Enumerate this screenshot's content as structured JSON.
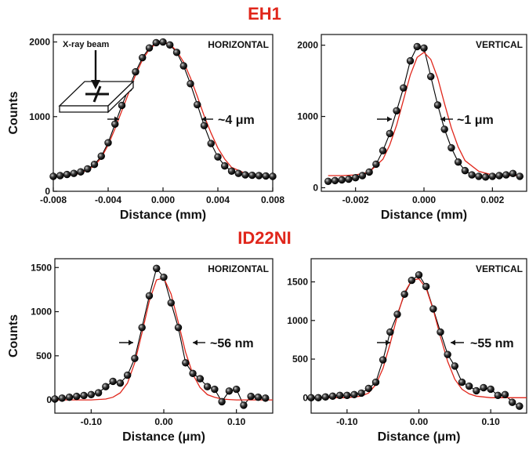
{
  "sections": [
    {
      "title": "EH1"
    },
    {
      "title": "ID22NI"
    }
  ],
  "inset": {
    "label": "X-ray beam"
  },
  "chart_data": [
    {
      "type": "scatter",
      "section": "EH1",
      "orientation": "HORIZONTAL",
      "fwhm_label": "~4 μm",
      "xlabel": "Distance (mm)",
      "ylabel": "Counts",
      "xlim": [
        -0.008,
        0.008
      ],
      "ylim": [
        0,
        2100
      ],
      "xticks": [
        -0.008,
        -0.004,
        0.0,
        0.004,
        0.008
      ],
      "xtick_labels": [
        "-0.008",
        "-0.004",
        "0.000",
        "0.004",
        "0.008"
      ],
      "yticks": [
        0,
        1000,
        2000
      ],
      "ytick_labels": [
        "0",
        "1000",
        "2000"
      ],
      "series": [
        {
          "name": "",
          "style": "markers+line",
          "color": "#000000",
          "x": [
            -0.008,
            -0.0075,
            -0.007,
            -0.0065,
            -0.006,
            -0.0055,
            -0.005,
            -0.0045,
            -0.004,
            -0.0035,
            -0.003,
            -0.0025,
            -0.002,
            -0.0015,
            -0.001,
            -0.0005,
            0.0,
            0.0005,
            0.001,
            0.0015,
            0.002,
            0.0025,
            0.003,
            0.0035,
            0.004,
            0.0045,
            0.005,
            0.0055,
            0.006,
            0.0065,
            0.007,
            0.0075,
            0.008
          ],
          "y": [
            200,
            210,
            225,
            240,
            260,
            300,
            360,
            470,
            650,
            900,
            1150,
            1380,
            1600,
            1790,
            1920,
            1990,
            2000,
            1960,
            1860,
            1680,
            1440,
            1160,
            880,
            640,
            460,
            340,
            270,
            240,
            220,
            215,
            210,
            205,
            200
          ]
        },
        {
          "name": "",
          "style": "line",
          "color": "#e0261b",
          "x": [
            -0.008,
            -0.007,
            -0.006,
            -0.005,
            -0.0045,
            -0.004,
            -0.0035,
            -0.003,
            -0.0025,
            -0.002,
            -0.0015,
            -0.001,
            -0.0005,
            0.0,
            0.0005,
            0.001,
            0.0015,
            0.002,
            0.0025,
            0.003,
            0.0035,
            0.004,
            0.0045,
            0.005,
            0.006,
            0.007,
            0.008
          ],
          "y": [
            200,
            210,
            240,
            340,
            450,
            620,
            840,
            1080,
            1320,
            1560,
            1760,
            1900,
            1980,
            2000,
            1970,
            1880,
            1730,
            1520,
            1270,
            1010,
            780,
            580,
            430,
            320,
            240,
            210,
            200
          ]
        }
      ]
    },
    {
      "type": "scatter",
      "section": "EH1",
      "orientation": "VERTICAL",
      "fwhm_label": "~1 μm",
      "xlabel": "Distance (mm)",
      "ylabel": "",
      "xlim": [
        -0.003,
        0.003
      ],
      "ylim": [
        -50,
        2150
      ],
      "xticks": [
        -0.002,
        0.0,
        0.002
      ],
      "xtick_labels": [
        "-0.002",
        "0.000",
        "0.002"
      ],
      "yticks": [
        0,
        1000,
        2000
      ],
      "ytick_labels": [
        "0",
        "1000",
        "2000"
      ],
      "series": [
        {
          "name": "",
          "style": "markers+line",
          "color": "#000000",
          "x": [
            -0.0028,
            -0.0026,
            -0.0024,
            -0.0022,
            -0.002,
            -0.0018,
            -0.0016,
            -0.0014,
            -0.0012,
            -0.001,
            -0.0008,
            -0.0006,
            -0.0004,
            -0.0002,
            0.0,
            0.0002,
            0.0004,
            0.0006,
            0.0008,
            0.001,
            0.0012,
            0.0014,
            0.0016,
            0.0018,
            0.002,
            0.0022,
            0.0024,
            0.0026,
            0.0028
          ],
          "y": [
            90,
            100,
            110,
            120,
            140,
            170,
            220,
            330,
            520,
            760,
            1080,
            1400,
            1780,
            1980,
            1960,
            1560,
            1160,
            820,
            560,
            360,
            240,
            180,
            160,
            150,
            160,
            170,
            180,
            200,
            160
          ]
        },
        {
          "name": "",
          "style": "line",
          "color": "#e0261b",
          "x": [
            -0.0028,
            -0.0024,
            -0.002,
            -0.0016,
            -0.0012,
            -0.001,
            -0.0008,
            -0.0006,
            -0.0004,
            -0.0002,
            0.0,
            0.0002,
            0.0004,
            0.0006,
            0.0008,
            0.001,
            0.0012,
            0.0016,
            0.002,
            0.0024,
            0.0028
          ],
          "y": [
            170,
            170,
            180,
            220,
            400,
            600,
            880,
            1230,
            1580,
            1830,
            1900,
            1800,
            1540,
            1180,
            840,
            570,
            380,
            230,
            180,
            170,
            170
          ]
        }
      ]
    },
    {
      "type": "scatter",
      "section": "ID22NI",
      "orientation": "HORIZONTAL",
      "fwhm_label": "~56 nm",
      "xlabel": "Distance (μm)",
      "ylabel": "Counts",
      "xlim": [
        -0.15,
        0.15
      ],
      "ylim": [
        -150,
        1600
      ],
      "xticks": [
        -0.1,
        0.0,
        0.1
      ],
      "xtick_labels": [
        "-0.10",
        "0.00",
        "0.10"
      ],
      "yticks": [
        0,
        500,
        1000,
        1500
      ],
      "ytick_labels": [
        "0",
        "500",
        "1000",
        "1500"
      ],
      "series": [
        {
          "name": "",
          "style": "markers+line",
          "color": "#000000",
          "x": [
            -0.15,
            -0.14,
            -0.13,
            -0.12,
            -0.11,
            -0.1,
            -0.09,
            -0.08,
            -0.07,
            -0.06,
            -0.05,
            -0.04,
            -0.03,
            -0.02,
            -0.01,
            0.0,
            0.01,
            0.02,
            0.03,
            0.04,
            0.05,
            0.06,
            0.07,
            0.08,
            0.09,
            0.1,
            0.11,
            0.12,
            0.13,
            0.14
          ],
          "y": [
            10,
            20,
            30,
            40,
            50,
            60,
            80,
            150,
            210,
            190,
            280,
            470,
            820,
            1180,
            1490,
            1390,
            1100,
            820,
            420,
            300,
            240,
            150,
            120,
            -20,
            100,
            120,
            -60,
            40,
            30,
            20
          ]
        },
        {
          "name": "",
          "style": "line",
          "color": "#e0261b",
          "x": [
            -0.15,
            -0.12,
            -0.1,
            -0.08,
            -0.07,
            -0.06,
            -0.05,
            -0.04,
            -0.03,
            -0.02,
            -0.01,
            0.0,
            0.01,
            0.02,
            0.03,
            0.04,
            0.05,
            0.06,
            0.07,
            0.08,
            0.09,
            0.1,
            0.12,
            0.15
          ],
          "y": [
            0,
            0,
            0,
            10,
            30,
            80,
            190,
            420,
            760,
            1120,
            1360,
            1380,
            1200,
            880,
            540,
            290,
            140,
            60,
            30,
            10,
            5,
            0,
            0,
            0
          ]
        }
      ]
    },
    {
      "type": "scatter",
      "section": "ID22NI",
      "orientation": "VERTICAL",
      "fwhm_label": "~55 nm",
      "xlabel": "Distance (μm)",
      "ylabel": "",
      "xlim": [
        -0.15,
        0.15
      ],
      "ylim": [
        -200,
        1800
      ],
      "xticks": [
        -0.1,
        0.0,
        0.1
      ],
      "xtick_labels": [
        "-0.10",
        "0.00",
        "0.10"
      ],
      "yticks": [
        0,
        500,
        1000,
        1500
      ],
      "ytick_labels": [
        "0",
        "500",
        "1000",
        "1500"
      ],
      "series": [
        {
          "name": "",
          "style": "markers+line",
          "color": "#000000",
          "x": [
            -0.15,
            -0.14,
            -0.13,
            -0.12,
            -0.11,
            -0.1,
            -0.09,
            -0.08,
            -0.07,
            -0.06,
            -0.05,
            -0.04,
            -0.03,
            -0.02,
            -0.01,
            0.0,
            0.01,
            0.02,
            0.03,
            0.04,
            0.05,
            0.06,
            0.07,
            0.08,
            0.09,
            0.1,
            0.11,
            0.12,
            0.13,
            0.14
          ],
          "y": [
            0,
            0,
            10,
            20,
            30,
            30,
            40,
            60,
            120,
            200,
            490,
            850,
            1080,
            1340,
            1520,
            1590,
            1440,
            1150,
            850,
            560,
            410,
            200,
            150,
            90,
            130,
            110,
            30,
            40,
            -60,
            -110
          ]
        },
        {
          "name": "",
          "style": "line",
          "color": "#e0261b",
          "x": [
            -0.15,
            -0.1,
            -0.08,
            -0.07,
            -0.06,
            -0.05,
            -0.04,
            -0.03,
            -0.02,
            -0.01,
            0.0,
            0.01,
            0.02,
            0.03,
            0.04,
            0.05,
            0.06,
            0.07,
            0.08,
            0.1,
            0.15
          ],
          "y": [
            0,
            0,
            20,
            60,
            170,
            380,
            700,
            1060,
            1360,
            1520,
            1540,
            1420,
            1140,
            790,
            470,
            240,
            110,
            50,
            20,
            0,
            0
          ]
        }
      ]
    }
  ]
}
